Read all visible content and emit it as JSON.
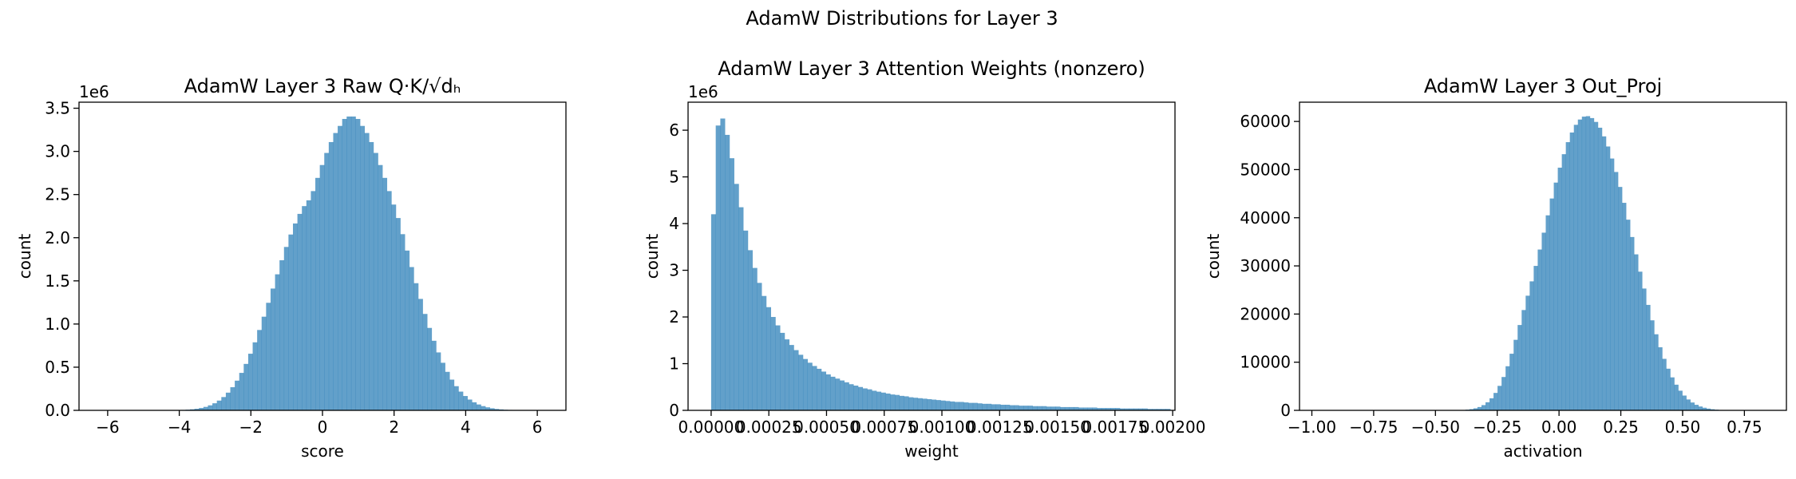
{
  "figure": {
    "suptitle": "AdamW Distributions for Layer 3",
    "bar_color": "#1f77b4",
    "bar_alpha": 0.7
  },
  "chart_data": [
    {
      "type": "bar",
      "title": "AdamW Layer 3 Raw Q·K/√dₕ",
      "xlabel": "score",
      "ylabel": "count",
      "ylim_max_label": "1e6",
      "xlim": [
        -6.8,
        6.8
      ],
      "ylim": [
        0,
        3.57
      ],
      "y_multiplier": "1e6",
      "xticks": [
        -6,
        -4,
        -2,
        0,
        2,
        4,
        6
      ],
      "xtick_labels": [
        "−6",
        "−4",
        "−2",
        "0",
        "2",
        "4",
        "6"
      ],
      "yticks": [
        0,
        0.5,
        1.0,
        1.5,
        2.0,
        2.5,
        3.0,
        3.5
      ],
      "ytick_labels": [
        "0.0",
        "0.5",
        "1.0",
        "1.5",
        "2.0",
        "2.5",
        "3.0",
        "3.5"
      ],
      "bin_range": [
        -6.2,
        6.3
      ],
      "values": [
        0.0,
        0.0,
        0.0,
        0.0,
        0.0,
        0.0,
        0.0,
        0.0,
        0.0,
        0.0,
        0.0,
        0.0,
        0.0,
        0.0,
        0.001,
        0.001,
        0.002,
        0.003,
        0.005,
        0.008,
        0.012,
        0.018,
        0.027,
        0.04,
        0.058,
        0.082,
        0.113,
        0.154,
        0.205,
        0.268,
        0.344,
        0.434,
        0.538,
        0.656,
        0.788,
        0.931,
        1.085,
        1.246,
        1.411,
        1.576,
        1.739,
        1.893,
        2.037,
        2.165,
        2.276,
        2.366,
        2.433,
        2.54,
        2.693,
        2.842,
        2.982,
        3.108,
        3.213,
        3.295,
        3.376,
        3.404,
        3.404,
        3.376,
        3.295,
        3.213,
        3.108,
        2.982,
        2.842,
        2.693,
        2.54,
        2.384,
        2.228,
        2.041,
        1.851,
        1.66,
        1.473,
        1.291,
        1.117,
        0.955,
        0.806,
        0.671,
        0.551,
        0.446,
        0.356,
        0.28,
        0.217,
        0.166,
        0.125,
        0.093,
        0.068,
        0.049,
        0.035,
        0.024,
        0.016,
        0.011,
        0.007,
        0.005,
        0.003,
        0.002,
        0.001,
        0.001,
        0.0,
        0.0,
        0.0,
        0.0
      ]
    },
    {
      "type": "bar",
      "title": "AdamW Layer 3 Attention Weights (nonzero)",
      "xlabel": "weight",
      "ylabel": "count",
      "ylim_max_label": "1e6",
      "xlim": [
        -0.0001,
        0.00201
      ],
      "ylim": [
        0,
        6.6
      ],
      "y_multiplier": "1e6",
      "xticks": [
        0.0,
        0.00025,
        0.0005,
        0.00075,
        0.001,
        0.00125,
        0.0015,
        0.00175,
        0.002
      ],
      "xtick_labels": [
        "0.00000",
        "0.00025",
        "0.00050",
        "0.00075",
        "0.00100",
        "0.00125",
        "0.00150",
        "0.00175",
        "0.00200"
      ],
      "yticks": [
        0,
        1,
        2,
        3,
        4,
        5,
        6
      ],
      "ytick_labels": [
        "0",
        "1",
        "2",
        "3",
        "4",
        "5",
        "6"
      ],
      "bin_range": [
        0.0,
        0.00199
      ],
      "values": [
        4.2,
        6.1,
        6.25,
        5.9,
        5.4,
        4.85,
        4.35,
        3.85,
        3.43,
        3.05,
        2.73,
        2.45,
        2.21,
        2.0,
        1.82,
        1.66,
        1.52,
        1.4,
        1.29,
        1.19,
        1.1,
        1.02,
        0.95,
        0.89,
        0.83,
        0.77,
        0.72,
        0.68,
        0.64,
        0.6,
        0.56,
        0.53,
        0.5,
        0.47,
        0.45,
        0.42,
        0.4,
        0.38,
        0.36,
        0.34,
        0.33,
        0.31,
        0.3,
        0.28,
        0.27,
        0.26,
        0.25,
        0.24,
        0.23,
        0.22,
        0.21,
        0.2,
        0.19,
        0.18,
        0.18,
        0.17,
        0.16,
        0.16,
        0.15,
        0.14,
        0.14,
        0.13,
        0.13,
        0.12,
        0.12,
        0.11,
        0.11,
        0.1,
        0.1,
        0.1,
        0.09,
        0.09,
        0.09,
        0.08,
        0.08,
        0.08,
        0.07,
        0.07,
        0.07,
        0.07,
        0.06,
        0.06,
        0.06,
        0.06,
        0.05,
        0.05,
        0.05,
        0.05,
        0.05,
        0.04,
        0.04,
        0.04,
        0.04,
        0.04,
        0.04,
        0.03,
        0.03,
        0.03,
        0.03,
        0.03
      ]
    },
    {
      "type": "bar",
      "title": "AdamW Layer 3 Out_Proj",
      "xlabel": "activation",
      "ylabel": "count",
      "ylim_max_label": "",
      "xlim": [
        -1.05,
        0.92
      ],
      "ylim": [
        0,
        64000
      ],
      "y_multiplier": "",
      "xticks": [
        -1.0,
        -0.75,
        -0.5,
        -0.25,
        0.0,
        0.25,
        0.5,
        0.75
      ],
      "xtick_labels": [
        "−1.00",
        "−0.75",
        "−0.50",
        "−0.25",
        "0.00",
        "0.25",
        "0.50",
        "0.75"
      ],
      "yticks": [
        0,
        10000,
        20000,
        30000,
        40000,
        50000,
        60000
      ],
      "ytick_labels": [
        "0",
        "10000",
        "20000",
        "30000",
        "40000",
        "50000",
        "60000"
      ],
      "bin_range": [
        -0.98,
        0.84
      ],
      "values": [
        0,
        0,
        0,
        0,
        0,
        0,
        0,
        0,
        0,
        0,
        0,
        0,
        0,
        0,
        0,
        0,
        0,
        0,
        0,
        0,
        0,
        0,
        0,
        0,
        0,
        0,
        0,
        0,
        0,
        0,
        0,
        2,
        5,
        11,
        22,
        42,
        78,
        141,
        247,
        418,
        686,
        1090,
        1677,
        2503,
        3621,
        5084,
        6927,
        9161,
        11758,
        14649,
        17722,
        20832,
        23810,
        26791,
        29998,
        33400,
        36900,
        40500,
        44000,
        47300,
        50400,
        53200,
        55700,
        57700,
        59300,
        60400,
        61000,
        61100,
        60700,
        59900,
        58700,
        56900,
        54800,
        52300,
        49500,
        46400,
        43100,
        39600,
        36000,
        32400,
        28800,
        25300,
        21900,
        18700,
        15800,
        13100,
        10700,
        8650,
        6850,
        5330,
        4080,
        3070,
        2260,
        1630,
        1150,
        800,
        540,
        360,
        230,
        140,
        85,
        50,
        28,
        15,
        8,
        4,
        2,
        1,
        0,
        0,
        0,
        0
      ]
    }
  ]
}
